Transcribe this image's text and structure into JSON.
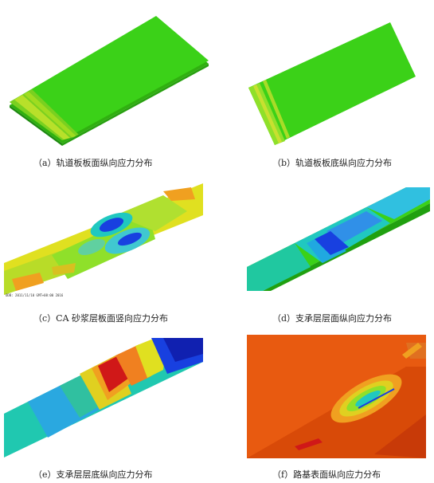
{
  "figure": {
    "panels": [
      {
        "id": "a",
        "caption": "（a）轨道板板面纵向应力分布"
      },
      {
        "id": "b",
        "caption": "（b）轨道板板底纵向应力分布"
      },
      {
        "id": "c",
        "caption": "（c）CA 砂浆层板面竖向应力分布",
        "stamp": "ODB: 2011/11/10 GMT+08:00 2016"
      },
      {
        "id": "d",
        "caption": "（d）支承层层面纵向应力分布"
      },
      {
        "id": "e",
        "caption": "（e）支承层层底纵向应力分布"
      },
      {
        "id": "f",
        "caption": "（f）路基表面纵向应力分布"
      }
    ]
  },
  "colors": {
    "green": "#3bd118",
    "light_green": "#8fe02a",
    "yellow": "#e0e020",
    "orange": "#f0a020",
    "red": "#d01818",
    "cyan": "#20c8c0",
    "blue": "#1840e0",
    "dark_blue": "#1020b0",
    "orange_red": "#e85a10"
  }
}
